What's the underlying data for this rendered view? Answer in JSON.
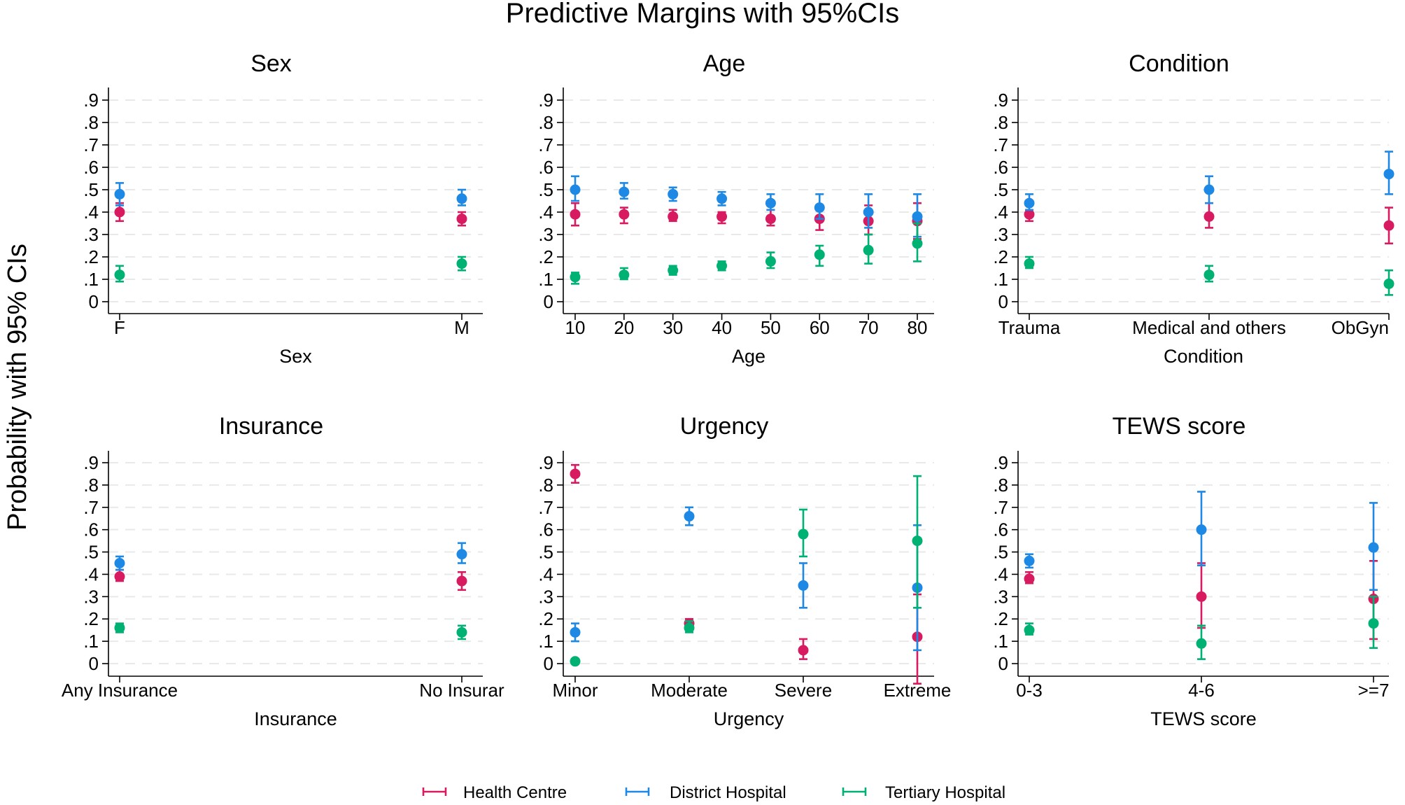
{
  "title": "Predictive Margins with 95%CIs",
  "ylabel": "Probability with 95% CIs",
  "legend": [
    {
      "name": "Health Centre",
      "color": "#d81b60"
    },
    {
      "name": "District Hospital",
      "color": "#1e88e5"
    },
    {
      "name": "Tertiary Hospital",
      "color": "#00b174"
    }
  ],
  "chart_data": [
    {
      "type": "scatter",
      "title": "Sex",
      "xlabel": "Sex",
      "ylabel": "Probability with 95% CIs",
      "ylim": [
        0,
        0.9
      ],
      "yticks": [
        "0",
        ".1",
        ".2",
        ".3",
        ".4",
        ".5",
        ".6",
        ".7",
        ".8",
        ".9"
      ],
      "categories": [
        "F",
        "M"
      ],
      "series": [
        {
          "name": "Health Centre",
          "values": [
            0.4,
            0.37
          ],
          "lower": [
            0.36,
            0.34
          ],
          "upper": [
            0.44,
            0.4
          ]
        },
        {
          "name": "District Hospital",
          "values": [
            0.48,
            0.46
          ],
          "lower": [
            0.43,
            0.43
          ],
          "upper": [
            0.53,
            0.5
          ]
        },
        {
          "name": "Tertiary Hospital",
          "values": [
            0.12,
            0.17
          ],
          "lower": [
            0.09,
            0.14
          ],
          "upper": [
            0.16,
            0.2
          ]
        }
      ]
    },
    {
      "type": "scatter",
      "title": "Age",
      "xlabel": "Age",
      "ylabel": "Probability with 95% CIs",
      "ylim": [
        0,
        0.9
      ],
      "yticks": [
        "0",
        ".1",
        ".2",
        ".3",
        ".4",
        ".5",
        ".6",
        ".7",
        ".8",
        ".9"
      ],
      "categories": [
        "10",
        "20",
        "30",
        "40",
        "50",
        "60",
        "70",
        "80"
      ],
      "series": [
        {
          "name": "Health Centre",
          "values": [
            0.39,
            0.39,
            0.38,
            0.38,
            0.37,
            0.37,
            0.36,
            0.36
          ],
          "lower": [
            0.34,
            0.35,
            0.36,
            0.35,
            0.34,
            0.32,
            0.3,
            0.28
          ],
          "upper": [
            0.44,
            0.42,
            0.41,
            0.4,
            0.41,
            0.42,
            0.43,
            0.44
          ]
        },
        {
          "name": "District Hospital",
          "values": [
            0.5,
            0.49,
            0.48,
            0.46,
            0.44,
            0.42,
            0.4,
            0.38
          ],
          "lower": [
            0.45,
            0.46,
            0.45,
            0.43,
            0.41,
            0.37,
            0.33,
            0.29
          ],
          "upper": [
            0.56,
            0.53,
            0.51,
            0.49,
            0.48,
            0.48,
            0.48,
            0.48
          ]
        },
        {
          "name": "Tertiary Hospital",
          "values": [
            0.11,
            0.12,
            0.14,
            0.16,
            0.18,
            0.21,
            0.23,
            0.26
          ],
          "lower": [
            0.08,
            0.1,
            0.12,
            0.14,
            0.15,
            0.16,
            0.17,
            0.18
          ],
          "upper": [
            0.13,
            0.15,
            0.16,
            0.18,
            0.22,
            0.25,
            0.3,
            0.35
          ]
        }
      ]
    },
    {
      "type": "scatter",
      "title": "Condition",
      "xlabel": "Condition",
      "ylabel": "Probability with 95% CIs",
      "ylim": [
        0,
        0.9
      ],
      "yticks": [
        "0",
        ".1",
        ".2",
        ".3",
        ".4",
        ".5",
        ".6",
        ".7",
        ".8",
        ".9"
      ],
      "categories": [
        "Trauma",
        "Medical and others",
        "ObGyn"
      ],
      "series": [
        {
          "name": "Health Centre",
          "values": [
            0.39,
            0.38,
            0.34
          ],
          "lower": [
            0.36,
            0.33,
            0.26
          ],
          "upper": [
            0.41,
            0.44,
            0.42
          ]
        },
        {
          "name": "District Hospital",
          "values": [
            0.44,
            0.5,
            0.57
          ],
          "lower": [
            0.41,
            0.44,
            0.48
          ],
          "upper": [
            0.48,
            0.56,
            0.67
          ]
        },
        {
          "name": "Tertiary Hospital",
          "values": [
            0.17,
            0.12,
            0.08
          ],
          "lower": [
            0.15,
            0.09,
            0.03
          ],
          "upper": [
            0.2,
            0.16,
            0.14
          ]
        }
      ]
    },
    {
      "type": "scatter",
      "title": "Insurance",
      "xlabel": "Insurance",
      "ylabel": "Probability with 95% CIs",
      "ylim": [
        0,
        0.9
      ],
      "yticks": [
        "0",
        ".1",
        ".2",
        ".3",
        ".4",
        ".5",
        ".6",
        ".7",
        ".8",
        ".9"
      ],
      "categories": [
        "Any Insurance",
        "No Insurar"
      ],
      "series": [
        {
          "name": "Health Centre",
          "values": [
            0.39,
            0.37
          ],
          "lower": [
            0.37,
            0.33
          ],
          "upper": [
            0.42,
            0.41
          ]
        },
        {
          "name": "District Hospital",
          "values": [
            0.45,
            0.49
          ],
          "lower": [
            0.42,
            0.45
          ],
          "upper": [
            0.48,
            0.54
          ]
        },
        {
          "name": "Tertiary Hospital",
          "values": [
            0.16,
            0.14
          ],
          "lower": [
            0.14,
            0.11
          ],
          "upper": [
            0.18,
            0.17
          ]
        }
      ]
    },
    {
      "type": "scatter",
      "title": "Urgency",
      "xlabel": "Urgency",
      "ylabel": "Probability with 95% CIs",
      "ylim": [
        0,
        0.9
      ],
      "yticks": [
        "0",
        ".1",
        ".2",
        ".3",
        ".4",
        ".5",
        ".6",
        ".7",
        ".8",
        ".9"
      ],
      "categories": [
        "Minor",
        "Moderate",
        "Severe",
        "Extreme"
      ],
      "series": [
        {
          "name": "Health Centre",
          "values": [
            0.85,
            0.18,
            0.06,
            0.12
          ],
          "lower": [
            0.81,
            0.16,
            0.02,
            -0.09
          ],
          "upper": [
            0.89,
            0.2,
            0.11,
            0.31
          ]
        },
        {
          "name": "District Hospital",
          "values": [
            0.14,
            0.66,
            0.35,
            0.34
          ],
          "lower": [
            0.1,
            0.62,
            0.25,
            0.06
          ],
          "upper": [
            0.18,
            0.7,
            0.45,
            0.62
          ]
        },
        {
          "name": "Tertiary Hospital",
          "values": [
            0.01,
            0.16,
            0.58,
            0.55
          ],
          "lower": [
            0.01,
            0.14,
            0.48,
            0.25
          ],
          "upper": [
            0.02,
            0.19,
            0.69,
            0.84
          ]
        }
      ]
    },
    {
      "type": "scatter",
      "title": "TEWS score",
      "xlabel": "TEWS score",
      "ylabel": "Probability with 95% CIs",
      "ylim": [
        0,
        0.9
      ],
      "yticks": [
        "0",
        ".1",
        ".2",
        ".3",
        ".4",
        ".5",
        ".6",
        ".7",
        ".8",
        ".9"
      ],
      "categories": [
        "0-3",
        "4-6",
        ">=7"
      ],
      "series": [
        {
          "name": "Health Centre",
          "values": [
            0.38,
            0.3,
            0.29
          ],
          "lower": [
            0.36,
            0.16,
            0.11
          ],
          "upper": [
            0.41,
            0.45,
            0.46
          ]
        },
        {
          "name": "District Hospital",
          "values": [
            0.46,
            0.6,
            0.52
          ],
          "lower": [
            0.43,
            0.44,
            0.33
          ],
          "upper": [
            0.49,
            0.77,
            0.72
          ]
        },
        {
          "name": "Tertiary Hospital",
          "values": [
            0.15,
            0.09,
            0.18
          ],
          "lower": [
            0.13,
            0.02,
            0.07
          ],
          "upper": [
            0.18,
            0.17,
            0.3
          ]
        }
      ]
    }
  ]
}
